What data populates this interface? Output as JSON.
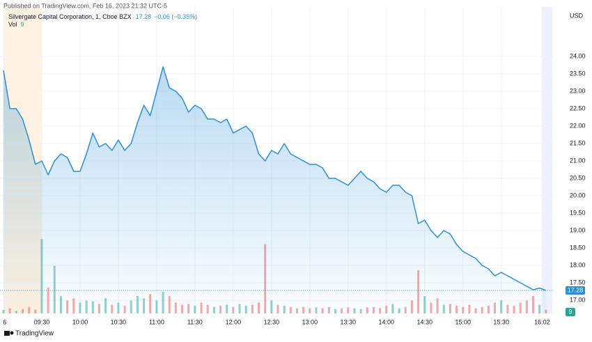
{
  "header": {
    "published": "Published on TradingView.com, Feb 16, 2023 21:32 UTC-5",
    "symbol": "Silvergate Capital Corporation, 1, Cboe BZX",
    "change": "−0.06 (−0.35%)",
    "vol_label": "Vol",
    "brand": "TradingView"
  },
  "chart_data": {
    "type": "area",
    "y_unit": "USD",
    "color": "#2a8fd6",
    "x": [
      540,
      545,
      550,
      555,
      560,
      565,
      570,
      575,
      580,
      585,
      590,
      595,
      600,
      605,
      610,
      615,
      620,
      625,
      630,
      635,
      640,
      645,
      650,
      655,
      660,
      665,
      670,
      675,
      680,
      685,
      690,
      695,
      700,
      705,
      710,
      715,
      720,
      725,
      730,
      735,
      740,
      745,
      750,
      755,
      760,
      765,
      770,
      775,
      780,
      785,
      790,
      795,
      800,
      805,
      810,
      815,
      820,
      825,
      830,
      835,
      840,
      845,
      850,
      855,
      860,
      865,
      870,
      875,
      880,
      885,
      890,
      895,
      900,
      905,
      910,
      915,
      920,
      925,
      930,
      935,
      940,
      945,
      950,
      955,
      960,
      965
    ],
    "values": [
      23.6,
      22.5,
      22.5,
      22.2,
      21.6,
      20.9,
      21.0,
      20.6,
      21.0,
      21.2,
      21.1,
      20.7,
      20.7,
      21.2,
      21.8,
      21.4,
      21.5,
      21.3,
      21.6,
      21.3,
      21.5,
      22.1,
      22.6,
      22.3,
      23.0,
      23.7,
      23.1,
      23.0,
      22.8,
      22.4,
      22.6,
      22.5,
      22.2,
      22.2,
      22.1,
      22.2,
      21.8,
      21.9,
      22.0,
      21.8,
      21.2,
      21.0,
      21.3,
      21.2,
      21.5,
      21.2,
      21.1,
      21.0,
      20.9,
      20.9,
      20.8,
      20.5,
      20.5,
      20.4,
      20.3,
      20.5,
      20.7,
      20.5,
      20.4,
      20.2,
      20.1,
      20.3,
      20.3,
      20.1,
      20.0,
      19.2,
      19.3,
      19.0,
      18.8,
      19.0,
      18.9,
      18.6,
      18.4,
      18.3,
      18.2,
      18.0,
      17.9,
      17.7,
      17.8,
      17.7,
      17.6,
      17.5,
      17.4,
      17.3,
      17.35,
      17.28
    ],
    "volume": {
      "values": [
        8,
        12,
        6,
        10,
        15,
        9,
        172,
        60,
        110,
        40,
        30,
        35,
        25,
        30,
        28,
        22,
        35,
        20,
        25,
        18,
        30,
        40,
        35,
        45,
        30,
        50,
        40,
        25,
        20,
        22,
        18,
        25,
        20,
        15,
        18,
        20,
        15,
        22,
        18,
        20,
        25,
        160,
        30,
        20,
        18,
        15,
        12,
        15,
        12,
        14,
        12,
        15,
        10,
        12,
        14,
        12,
        10,
        14,
        15,
        12,
        18,
        22,
        12,
        15,
        30,
        100,
        40,
        25,
        35,
        20,
        22,
        18,
        15,
        20,
        12,
        15,
        18,
        25,
        30,
        20,
        18,
        25,
        30,
        40,
        20,
        9
      ],
      "up_color": "#26a69a",
      "down_color": "#ef5350"
    },
    "y2lim": [
      0,
      700
    ],
    "xlim": [
      540,
      970
    ],
    "xticks": [
      {
        "value": 541,
        "label": "6"
      },
      {
        "value": 570,
        "label": "09:30"
      },
      {
        "value": 600,
        "label": "10:00"
      },
      {
        "value": 630,
        "label": "10:30"
      },
      {
        "value": 660,
        "label": "11:00"
      },
      {
        "value": 690,
        "label": "11:30"
      },
      {
        "value": 720,
        "label": "12:00"
      },
      {
        "value": 750,
        "label": "12:30"
      },
      {
        "value": 780,
        "label": "13:00"
      },
      {
        "value": 810,
        "label": "13:30"
      },
      {
        "value": 840,
        "label": "14:00"
      },
      {
        "value": 870,
        "label": "14:30"
      },
      {
        "value": 900,
        "label": "15:00"
      },
      {
        "value": 930,
        "label": "15:30"
      },
      {
        "value": 962,
        "label": "16:02"
      }
    ],
    "ylim": [
      16.62,
      25.32
    ],
    "yticks": [
      {
        "value": 17,
        "label": "17.00"
      },
      {
        "value": 17.5,
        "label": "17.50"
      },
      {
        "value": 18,
        "label": "18.00"
      },
      {
        "value": 18.5,
        "label": "18.50"
      },
      {
        "value": 19,
        "label": "19.00"
      },
      {
        "value": 19.5,
        "label": "19.50"
      },
      {
        "value": 20,
        "label": "20.00"
      },
      {
        "value": 20.5,
        "label": "20.50"
      },
      {
        "value": 21,
        "label": "21.00"
      },
      {
        "value": 21.5,
        "label": "21.50"
      },
      {
        "value": 22,
        "label": "22.00"
      },
      {
        "value": 22.5,
        "label": "22.50"
      },
      {
        "value": 23,
        "label": "23.00"
      },
      {
        "value": 23.5,
        "label": "23.50"
      },
      {
        "value": 24,
        "label": "24.00"
      }
    ],
    "grid": true,
    "sessions": [
      {
        "from": 540,
        "to": 570,
        "color": "rgba(255,152,0,0.12)"
      },
      {
        "from": 962,
        "to": 970,
        "color": "rgba(41,98,255,0.09)"
      }
    ]
  }
}
